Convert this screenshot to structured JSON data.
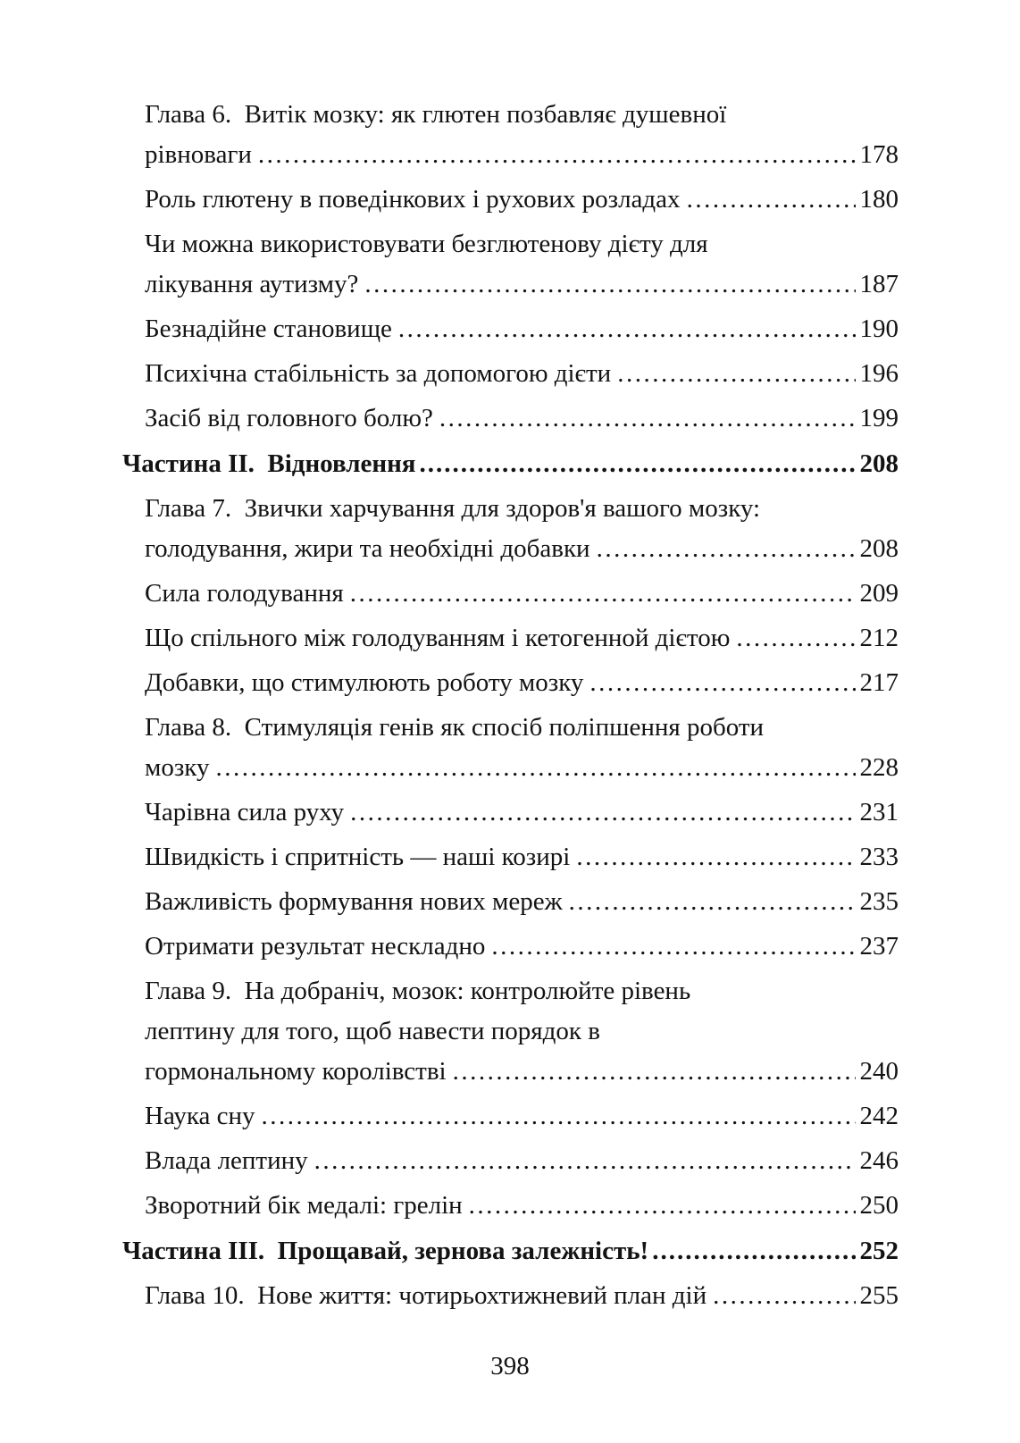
{
  "document": {
    "language": "uk",
    "leader_char": ".",
    "footer_page_number": "398",
    "toc_entries": [
      {
        "type": "chapter",
        "lines": [
          "Глава 6.  Витік мозку: як глютен позбавляє душевної",
          "рівноваги"
        ],
        "page": "178"
      },
      {
        "type": "section",
        "lines": [
          "Роль глютену в поведінкових і рухових розладах"
        ],
        "page": "180"
      },
      {
        "type": "section",
        "lines": [
          "Чи можна використовувати безглютенову дієту для",
          "лікування аутизму?"
        ],
        "page": "187"
      },
      {
        "type": "section",
        "lines": [
          "Безнадійне становище"
        ],
        "page": "190"
      },
      {
        "type": "section",
        "lines": [
          "Психічна стабільність за допомогою дієти"
        ],
        "page": "196"
      },
      {
        "type": "section",
        "lines": [
          "Засіб від головного болю?"
        ],
        "page": "199"
      },
      {
        "type": "part",
        "lines": [
          "Частина II.  Відновлення"
        ],
        "page": "208"
      },
      {
        "type": "chapter",
        "lines": [
          "Глава 7.  Звички харчування для здоров'я вашого мозку:",
          "голодування, жири та необхідні добавки"
        ],
        "page": "208"
      },
      {
        "type": "section",
        "lines": [
          "Сила голодування"
        ],
        "page": "209"
      },
      {
        "type": "section",
        "lines": [
          "Що спільного між голодуванням і кетогенной дієтою"
        ],
        "page": "212"
      },
      {
        "type": "section",
        "lines": [
          "Добавки, що стимулюють роботу мозку"
        ],
        "page": "217"
      },
      {
        "type": "chapter",
        "lines": [
          "Глава 8.  Стимуляція генів як спосіб поліпшення роботи",
          "мозку"
        ],
        "page": "228"
      },
      {
        "type": "section",
        "lines": [
          "Чарівна сила руху"
        ],
        "page": "231"
      },
      {
        "type": "section",
        "lines": [
          "Швидкість і спритність — наші козирі"
        ],
        "page": "233"
      },
      {
        "type": "section",
        "lines": [
          "Важливість формування нових мереж"
        ],
        "page": "235"
      },
      {
        "type": "section",
        "lines": [
          "Отримати результат нескладно"
        ],
        "page": "237"
      },
      {
        "type": "chapter",
        "lines": [
          "Глава 9.  На добраніч, мозок: контролюйте рівень",
          "лептину для того, щоб навести порядок в",
          "гормональному королівстві"
        ],
        "page": "240"
      },
      {
        "type": "section",
        "lines": [
          "Наука сну"
        ],
        "page": "242"
      },
      {
        "type": "section",
        "lines": [
          "Влада лептину"
        ],
        "page": "246"
      },
      {
        "type": "section",
        "lines": [
          "Зворотний бік медалі: грелін"
        ],
        "page": "250"
      },
      {
        "type": "part",
        "lines": [
          "Частина III.  Прощавай, зернова залежність!"
        ],
        "page": "252"
      },
      {
        "type": "chapter",
        "lines": [
          "Глава 10.  Нове життя: чотирьохтижневий план дій"
        ],
        "page": "255"
      }
    ]
  }
}
